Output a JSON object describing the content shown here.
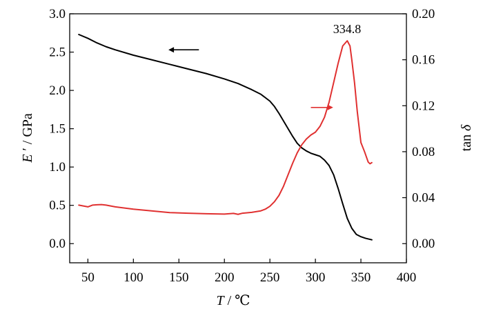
{
  "chart_data": {
    "type": "line",
    "xlabel": {
      "symbol": "T",
      "rest": " / ℃"
    },
    "ylabel_left": {
      "symbol": "E",
      "rest": " ′ / GPa"
    },
    "ylabel_right": {
      "prefix": "tan ",
      "symbol": "δ"
    },
    "xlim": [
      30,
      400
    ],
    "ylim_left": [
      -0.25,
      3.0
    ],
    "ylim_right": [
      -0.01667,
      0.2
    ],
    "x_ticks": [
      50,
      100,
      150,
      200,
      250,
      300,
      350,
      400
    ],
    "x_tick_labels": [
      "50",
      "100",
      "150",
      "200",
      "250",
      "300",
      "350",
      "400"
    ],
    "y_left_ticks": [
      0.0,
      0.5,
      1.0,
      1.5,
      2.0,
      2.5,
      3.0
    ],
    "y_left_tick_labels": [
      "0.0",
      "0.5",
      "1.0",
      "1.5",
      "2.0",
      "2.5",
      "3.0"
    ],
    "y_right_ticks": [
      0.0,
      0.04,
      0.08,
      0.12,
      0.16,
      0.2
    ],
    "y_right_tick_labels": [
      "0.00",
      "0.04",
      "0.08",
      "0.12",
      "0.16",
      "0.20"
    ],
    "grid": false,
    "series": [
      {
        "axis": "left",
        "color": "#000000",
        "x": [
          40,
          50,
          60,
          70,
          80,
          100,
          120,
          140,
          160,
          180,
          200,
          215,
          230,
          240,
          250,
          255,
          260,
          265,
          270,
          275,
          280,
          285,
          290,
          295,
          300,
          305,
          310,
          315,
          320,
          325,
          330,
          335,
          340,
          345,
          350,
          355,
          362
        ],
        "y": [
          2.73,
          2.68,
          2.62,
          2.57,
          2.53,
          2.46,
          2.4,
          2.34,
          2.28,
          2.22,
          2.15,
          2.09,
          2.01,
          1.95,
          1.86,
          1.79,
          1.7,
          1.6,
          1.5,
          1.4,
          1.31,
          1.25,
          1.21,
          1.18,
          1.16,
          1.14,
          1.09,
          1.02,
          0.9,
          0.72,
          0.52,
          0.33,
          0.2,
          0.12,
          0.09,
          0.07,
          0.05
        ]
      },
      {
        "axis": "right",
        "color": "#e03030",
        "x": [
          40,
          50,
          55,
          60,
          65,
          70,
          80,
          100,
          120,
          140,
          160,
          180,
          200,
          210,
          215,
          220,
          230,
          240,
          245,
          250,
          255,
          260,
          265,
          270,
          275,
          280,
          285,
          290,
          295,
          300,
          305,
          310,
          315,
          320,
          325,
          330,
          335,
          338,
          340,
          343,
          346,
          350,
          354,
          358,
          360,
          362
        ],
        "y": [
          0.0335,
          0.032,
          0.0335,
          0.0338,
          0.034,
          0.0335,
          0.032,
          0.03,
          0.0285,
          0.027,
          0.0265,
          0.026,
          0.0257,
          0.0263,
          0.0255,
          0.0265,
          0.0272,
          0.0285,
          0.03,
          0.0325,
          0.0365,
          0.042,
          0.05,
          0.06,
          0.07,
          0.079,
          0.086,
          0.091,
          0.0945,
          0.097,
          0.102,
          0.11,
          0.123,
          0.14,
          0.157,
          0.172,
          0.1765,
          0.172,
          0.16,
          0.14,
          0.115,
          0.088,
          0.08,
          0.071,
          0.0695,
          0.0705
        ]
      }
    ],
    "annotations": [
      {
        "text": "334.8",
        "x": 334.8,
        "y": 0.1765,
        "axis": "right"
      }
    ],
    "direction_arrows": [
      {
        "series": 0,
        "points_to": "left",
        "x_from": 172,
        "x_to": 140,
        "y": 2.53,
        "axis": "left"
      },
      {
        "series": 1,
        "points_to": "right",
        "x_from": 295,
        "x_to": 318,
        "y": 0.1185,
        "axis": "right"
      }
    ]
  }
}
